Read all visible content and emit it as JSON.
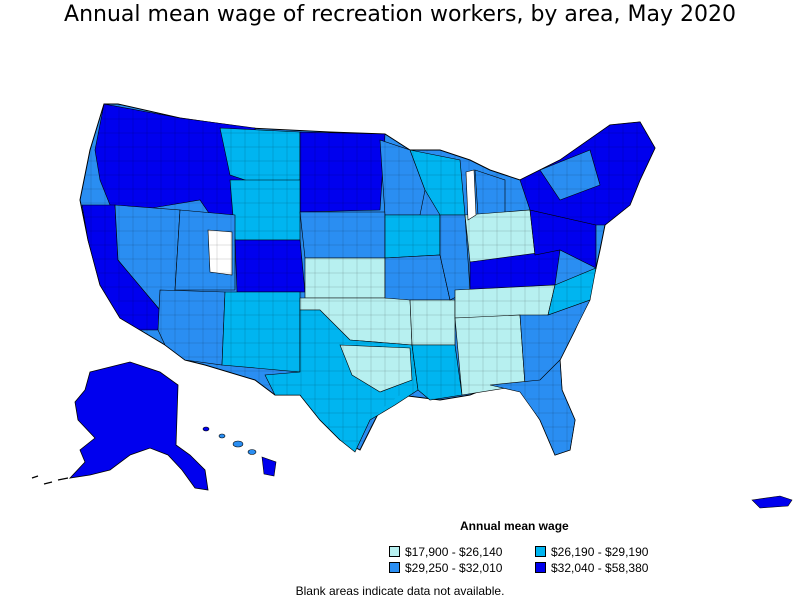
{
  "title": "Annual mean wage of recreation workers, by area, May 2020",
  "legend": {
    "title": "Annual mean wage",
    "items": [
      {
        "label": "$17,900 - $26,140",
        "color": "#b7f0f0"
      },
      {
        "label": "$26,190 - $29,190",
        "color": "#00b5f0"
      },
      {
        "label": "$29,250 - $32,010",
        "color": "#2a8ef2"
      },
      {
        "label": "$32,040 - $58,380",
        "color": "#0000ee"
      }
    ]
  },
  "note": "Blank areas indicate data not available."
}
